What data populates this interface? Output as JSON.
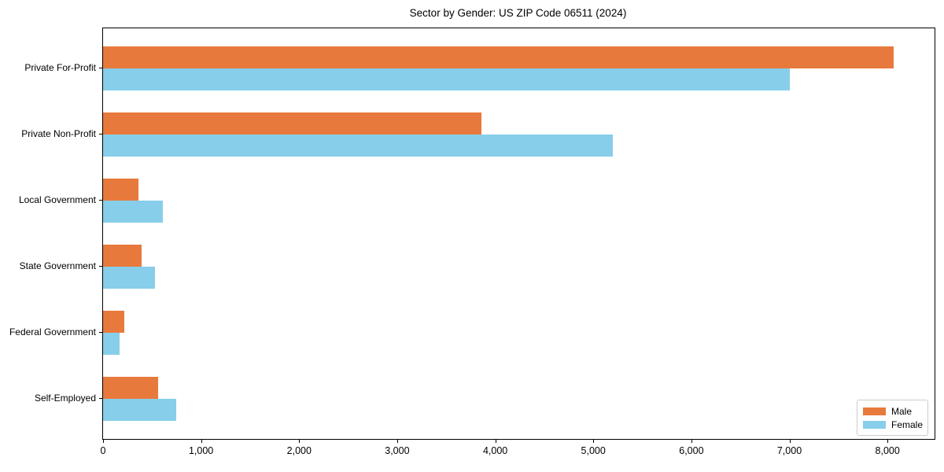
{
  "chart_data": {
    "type": "bar",
    "orientation": "horizontal",
    "title": "Sector by Gender: US ZIP Code 06511 (2024)",
    "categories": [
      "Private For-Profit",
      "Private Non-Profit",
      "Local Government",
      "State Government",
      "Federal Government",
      "Self-Employed"
    ],
    "series": [
      {
        "name": "Male",
        "color": "#E8793C",
        "values": [
          8060,
          3860,
          360,
          390,
          220,
          560
        ]
      },
      {
        "name": "Female",
        "color": "#87CEEA",
        "values": [
          7000,
          5200,
          610,
          530,
          170,
          745
        ]
      }
    ],
    "xlabel": "",
    "ylabel": "",
    "xlim": [
      0,
      8480
    ],
    "x_ticks": [
      0,
      1000,
      2000,
      3000,
      4000,
      5000,
      6000,
      7000,
      8000
    ],
    "x_tick_labels": [
      "0",
      "1,000",
      "2,000",
      "3,000",
      "4,000",
      "5,000",
      "6,000",
      "7,000",
      "8,000"
    ],
    "grid": false,
    "legend": {
      "position": "lower right"
    }
  }
}
